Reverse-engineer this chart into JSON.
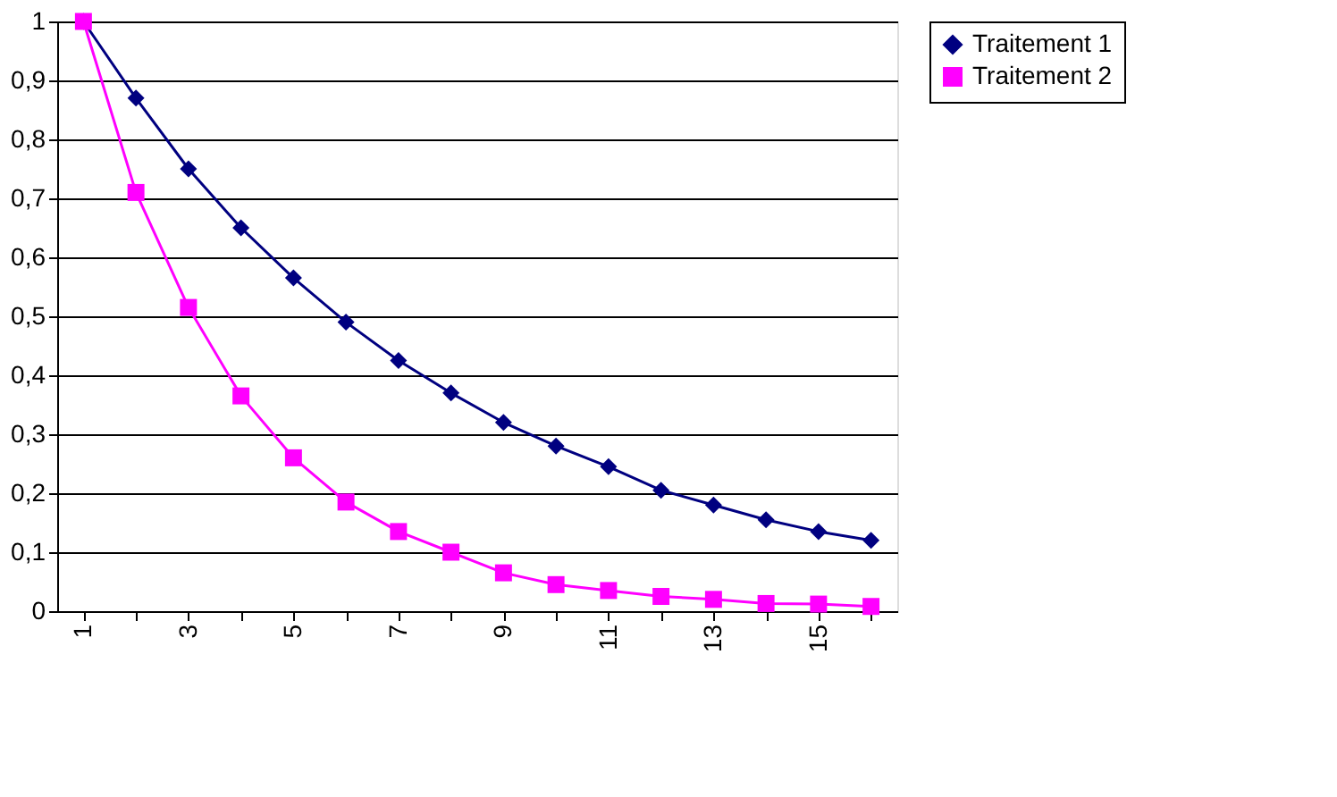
{
  "chart_data": {
    "type": "line",
    "categories": [
      "1",
      null,
      "3",
      null,
      "5",
      null,
      "7",
      null,
      "9",
      null,
      "11",
      null,
      "13",
      null,
      "15",
      null
    ],
    "series": [
      {
        "name": "Traitement 1",
        "color": "#000080",
        "marker": "diamond",
        "values": [
          1,
          0.87,
          0.75,
          0.65,
          0.565,
          0.49,
          0.425,
          0.37,
          0.32,
          0.28,
          0.245,
          0.205,
          0.18,
          0.155,
          0.135,
          0.12
        ]
      },
      {
        "name": "Traitement 2",
        "color": "#ff00ff",
        "marker": "square",
        "values": [
          1,
          0.71,
          0.515,
          0.365,
          0.26,
          0.185,
          0.135,
          0.1,
          0.065,
          0.045,
          0.035,
          0.025,
          0.02,
          0.013,
          0.012,
          0.008
        ]
      }
    ],
    "ylim": [
      0,
      1
    ],
    "yticks": [
      0,
      {
        "value": 0.1,
        "label": "0,1"
      },
      {
        "value": 0.2,
        "label": "0,2"
      },
      {
        "value": 0.3,
        "label": "0,3"
      },
      {
        "value": 0.4,
        "label": "0,4"
      },
      {
        "value": 0.5,
        "label": "0,5"
      },
      {
        "value": 0.6,
        "label": "0,6"
      },
      {
        "value": 0.7,
        "label": "0,7"
      },
      {
        "value": 0.8,
        "label": "0,8"
      },
      {
        "value": 0.9,
        "label": "0,9"
      },
      1
    ],
    "grid": "y",
    "legend": "right",
    "line_style": "solid"
  }
}
